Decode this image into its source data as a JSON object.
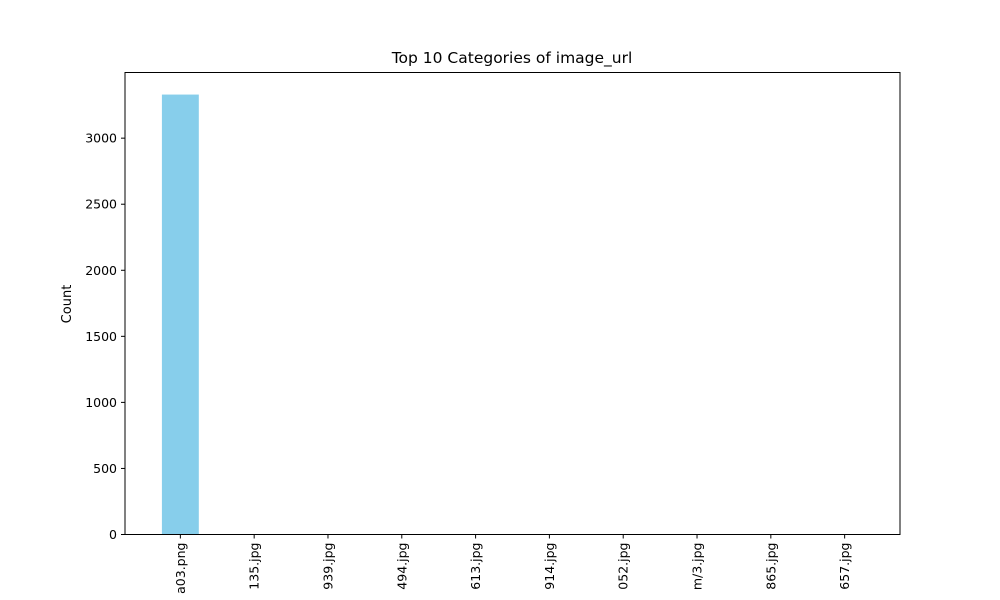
{
  "chart_data": {
    "type": "bar",
    "title": "Top 10 Categories of image_url",
    "xlabel": "",
    "ylabel": "Count",
    "categories": [
      "a03.png",
      "135.jpg",
      "939.jpg",
      "494.jpg",
      "613.jpg",
      "914.jpg",
      "052.jpg",
      "m/3.jpg",
      "865.jpg",
      "657.jpg"
    ],
    "values": [
      3330,
      1,
      1,
      1,
      1,
      1,
      1,
      1,
      1,
      1
    ],
    "ylim": [
      0,
      3497
    ],
    "yticks": [
      0,
      500,
      1000,
      1500,
      2000,
      2500,
      3000
    ],
    "grid": false,
    "bar_color": "#87ceeb"
  }
}
